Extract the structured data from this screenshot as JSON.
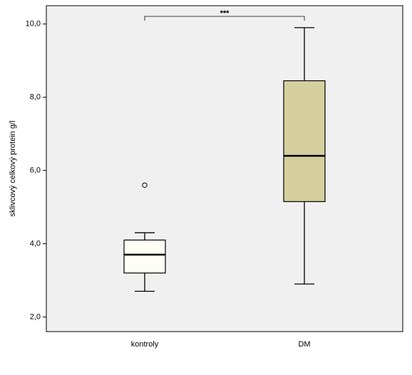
{
  "chart_data": {
    "type": "box",
    "y_label": "sklivcový celkový protein g/l",
    "categories": [
      "kontroly",
      "DM"
    ],
    "boxes": [
      {
        "min": 2.7,
        "q1": 3.2,
        "median": 3.7,
        "q3": 4.1,
        "max": 4.3,
        "outliers": [
          5.6
        ],
        "color": "#fffef4"
      },
      {
        "min": 2.9,
        "q1": 5.15,
        "median": 6.4,
        "q3": 8.45,
        "max": 9.9,
        "outliers": [],
        "color": "#d6cf9e"
      }
    ],
    "annotation": "***",
    "ylim": [
      1.6,
      10.5
    ],
    "yticks": [
      {
        "value": 2,
        "label": "2,0"
      },
      {
        "value": 4,
        "label": "4,0"
      },
      {
        "value": 6,
        "label": "6,0"
      },
      {
        "value": 8,
        "label": "8,0"
      },
      {
        "value": 10,
        "label": "10,0"
      }
    ]
  }
}
